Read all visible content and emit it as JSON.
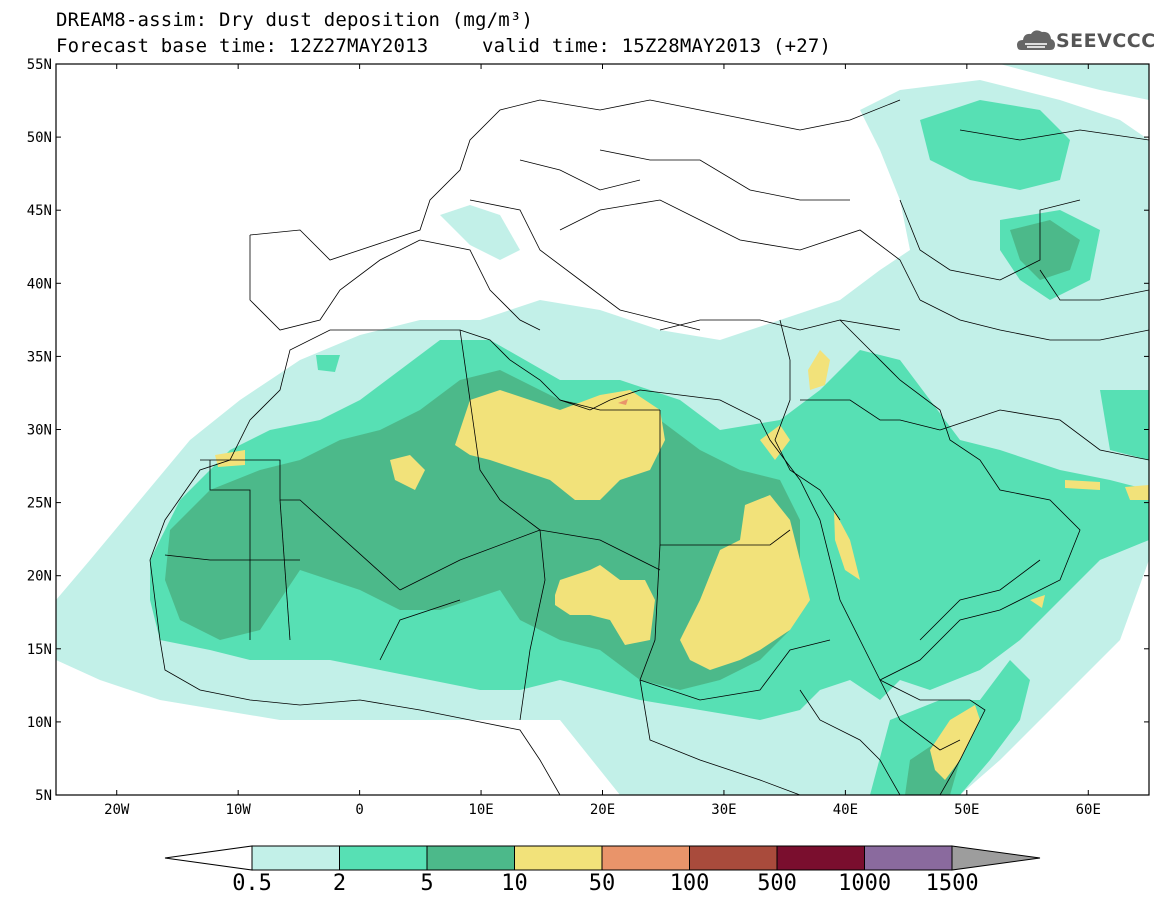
{
  "title": {
    "line1": "DREAM8-assim: Dry dust deposition (mg/m³)",
    "line2_base": "Forecast base time: 12Z27MAY2013",
    "line2_valid": "valid time: 15Z28MAY2013 (+27)"
  },
  "logo": {
    "text": "SEEVCCC",
    "icon": "cloud-icon"
  },
  "axes": {
    "lat_labels": [
      "55N",
      "50N",
      "45N",
      "40N",
      "35N",
      "30N",
      "25N",
      "20N",
      "15N",
      "10N",
      "5N"
    ],
    "lon_labels": [
      "20W",
      "10W",
      "0",
      "10E",
      "20E",
      "30E",
      "40E",
      "50E",
      "60E"
    ],
    "lon_range": [
      -25,
      65
    ],
    "lat_range": [
      5,
      55
    ]
  },
  "colorbar": {
    "labels": [
      "0.5",
      "2",
      "5",
      "10",
      "50",
      "100",
      "500",
      "1000",
      "1500"
    ],
    "colors": [
      "#c2f0e8",
      "#57e0b4",
      "#4cb98a",
      "#f2e27a",
      "#e9946a",
      "#a94b3c",
      "#7a0e2e",
      "#8a6a9e",
      "#9d9d9d"
    ]
  }
}
